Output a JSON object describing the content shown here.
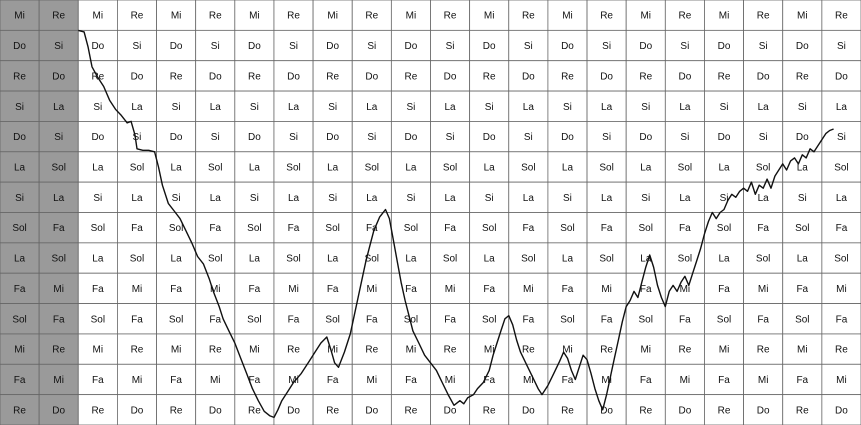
{
  "grid": {
    "rows": [
      [
        "Mi",
        "Re",
        "Mi",
        "Re",
        "Mi",
        "Re",
        "Mi",
        "Re",
        "Mi",
        "Re",
        "Mi",
        "Re",
        "Mi",
        "Re",
        "Mi",
        "Re",
        "Mi",
        "Re",
        "Mi",
        "Re",
        "Mi",
        "Re"
      ],
      [
        "Do",
        "Si",
        "Do",
        "Si",
        "Do",
        "Si",
        "Do",
        "Si",
        "Do",
        "Si",
        "Do",
        "Si",
        "Do",
        "Si",
        "Do",
        "Si",
        "Do",
        "Si",
        "Do",
        "Si",
        "Do",
        "Si"
      ],
      [
        "Re",
        "Do",
        "Re",
        "Do",
        "Re",
        "Do",
        "Re",
        "Do",
        "Re",
        "Do",
        "Re",
        "Do",
        "Re",
        "Do",
        "Re",
        "Do",
        "Re",
        "Do",
        "Re",
        "Do",
        "Re",
        "Do"
      ],
      [
        "Si",
        "La",
        "Si",
        "La",
        "Si",
        "La",
        "Si",
        "La",
        "Si",
        "La",
        "Si",
        "La",
        "Si",
        "La",
        "Si",
        "La",
        "Si",
        "La",
        "Si",
        "La",
        "Si",
        "La"
      ],
      [
        "Do",
        "Si",
        "Do",
        "Si",
        "Do",
        "Si",
        "Do",
        "Si",
        "Do",
        "Si",
        "Do",
        "Si",
        "Do",
        "Si",
        "Do",
        "Si",
        "Do",
        "Si",
        "Do",
        "Si",
        "Do",
        "Si"
      ],
      [
        "La",
        "Sol",
        "La",
        "Sol",
        "La",
        "Sol",
        "La",
        "Sol",
        "La",
        "Sol",
        "La",
        "Sol",
        "La",
        "Sol",
        "La",
        "Sol",
        "La",
        "Sol",
        "La",
        "Sol",
        "La",
        "Sol"
      ],
      [
        "Si",
        "La",
        "Si",
        "La",
        "Si",
        "La",
        "Si",
        "La",
        "Si",
        "La",
        "Si",
        "La",
        "Si",
        "La",
        "Si",
        "La",
        "Si",
        "La",
        "Si",
        "La",
        "Si",
        "La"
      ],
      [
        "Sol",
        "Fa",
        "Sol",
        "Fa",
        "Sol",
        "Fa",
        "Sol",
        "Fa",
        "Sol",
        "Fa",
        "Sol",
        "Fa",
        "Sol",
        "Fa",
        "Sol",
        "Fa",
        "Sol",
        "Fa",
        "Sol",
        "Fa",
        "Sol",
        "Fa"
      ],
      [
        "La",
        "Sol",
        "La",
        "Sol",
        "La",
        "Sol",
        "La",
        "Sol",
        "La",
        "Sol",
        "La",
        "Sol",
        "La",
        "Sol",
        "La",
        "Sol",
        "La",
        "Sol",
        "La",
        "Sol",
        "La",
        "Sol"
      ],
      [
        "Fa",
        "Mi",
        "Fa",
        "Mi",
        "Fa",
        "Mi",
        "Fa",
        "Mi",
        "Fa",
        "Mi",
        "Fa",
        "Mi",
        "Fa",
        "Mi",
        "Fa",
        "Mi",
        "Fa",
        "Mi",
        "Fa",
        "Mi",
        "Fa",
        "Mi"
      ],
      [
        "Sol",
        "Fa",
        "Sol",
        "Fa",
        "Sol",
        "Fa",
        "Sol",
        "Fa",
        "Sol",
        "Fa",
        "Sol",
        "Fa",
        "Sol",
        "Fa",
        "Sol",
        "Fa",
        "Sol",
        "Fa",
        "Sol",
        "Fa",
        "Sol",
        "Fa"
      ],
      [
        "Mi",
        "Re",
        "Mi",
        "Re",
        "Mi",
        "Re",
        "Mi",
        "Re",
        "Mi",
        "Re",
        "Mi",
        "Re",
        "Mi",
        "Re",
        "Mi",
        "Re",
        "Mi",
        "Re",
        "Mi",
        "Re",
        "Mi",
        "Re"
      ],
      [
        "Fa",
        "Mi",
        "Fa",
        "Mi",
        "Fa",
        "Mi",
        "Fa",
        "Mi",
        "Fa",
        "Mi",
        "Fa",
        "Mi",
        "Fa",
        "Mi",
        "Fa",
        "Mi",
        "Fa",
        "Mi",
        "Fa",
        "Mi",
        "Fa",
        "Mi"
      ],
      [
        "Re",
        "Do",
        "Re",
        "Do",
        "Re",
        "Do",
        "Re",
        "Do",
        "Re",
        "Do",
        "Re",
        "Do",
        "Re",
        "Do",
        "Re",
        "Do",
        "Re",
        "Do",
        "Re",
        "Do",
        "Re",
        "Do"
      ]
    ],
    "label_columns": 2,
    "colors": {
      "label_fill": "#9a9a9a",
      "cell_fill": "#ffffff",
      "border": "#666666",
      "trace": "#111111"
    }
  },
  "pitch_trace": {
    "description_units": "grid cells (column, row from top)",
    "points": [
      [
        2.0,
        1.0
      ],
      [
        2.15,
        1.05
      ],
      [
        2.25,
        1.55
      ],
      [
        2.35,
        2.2
      ],
      [
        2.5,
        2.55
      ],
      [
        2.65,
        2.85
      ],
      [
        2.8,
        3.3
      ],
      [
        2.95,
        3.6
      ],
      [
        3.1,
        3.8
      ],
      [
        3.25,
        4.05
      ],
      [
        3.35,
        4.0
      ],
      [
        3.45,
        4.45
      ],
      [
        3.5,
        4.9
      ],
      [
        3.65,
        4.95
      ],
      [
        3.8,
        4.95
      ],
      [
        3.95,
        5.0
      ],
      [
        4.05,
        5.5
      ],
      [
        4.15,
        6.1
      ],
      [
        4.3,
        6.7
      ],
      [
        4.45,
        6.95
      ],
      [
        4.6,
        7.2
      ],
      [
        4.75,
        7.6
      ],
      [
        4.9,
        8.0
      ],
      [
        5.05,
        8.45
      ],
      [
        5.2,
        8.7
      ],
      [
        5.35,
        9.2
      ],
      [
        5.45,
        9.6
      ],
      [
        5.6,
        10.1
      ],
      [
        5.7,
        10.5
      ],
      [
        5.85,
        10.9
      ],
      [
        6.0,
        11.3
      ],
      [
        6.15,
        11.8
      ],
      [
        6.3,
        12.3
      ],
      [
        6.45,
        12.8
      ],
      [
        6.6,
        13.2
      ],
      [
        6.75,
        13.55
      ],
      [
        6.9,
        13.7
      ],
      [
        7.0,
        13.75
      ],
      [
        7.1,
        13.5
      ],
      [
        7.2,
        13.2
      ],
      [
        7.35,
        12.9
      ],
      [
        7.5,
        12.6
      ],
      [
        7.7,
        12.3
      ],
      [
        7.9,
        11.9
      ],
      [
        8.05,
        11.6
      ],
      [
        8.2,
        11.3
      ],
      [
        8.35,
        11.1
      ],
      [
        8.45,
        11.5
      ],
      [
        8.55,
        11.95
      ],
      [
        8.65,
        12.1
      ],
      [
        8.8,
        11.6
      ],
      [
        8.95,
        11.0
      ],
      [
        9.05,
        10.4
      ],
      [
        9.15,
        9.8
      ],
      [
        9.25,
        9.2
      ],
      [
        9.35,
        8.6
      ],
      [
        9.45,
        8.1
      ],
      [
        9.55,
        7.6
      ],
      [
        9.7,
        7.15
      ],
      [
        9.85,
        6.9
      ],
      [
        9.95,
        7.2
      ],
      [
        10.05,
        7.9
      ],
      [
        10.15,
        8.6
      ],
      [
        10.25,
        9.3
      ],
      [
        10.35,
        9.9
      ],
      [
        10.45,
        10.4
      ],
      [
        10.55,
        10.9
      ],
      [
        10.7,
        11.3
      ],
      [
        10.85,
        11.7
      ],
      [
        11.0,
        11.95
      ],
      [
        11.15,
        12.2
      ],
      [
        11.3,
        12.6
      ],
      [
        11.45,
        13.0
      ],
      [
        11.6,
        13.35
      ],
      [
        11.75,
        13.2
      ],
      [
        11.85,
        13.3
      ],
      [
        11.95,
        13.1
      ],
      [
        12.1,
        13.0
      ],
      [
        12.2,
        12.8
      ],
      [
        12.35,
        12.6
      ],
      [
        12.5,
        12.2
      ],
      [
        12.6,
        11.7
      ],
      [
        12.7,
        11.3
      ],
      [
        12.8,
        10.9
      ],
      [
        12.9,
        10.5
      ],
      [
        13.0,
        10.4
      ],
      [
        13.1,
        10.7
      ],
      [
        13.2,
        11.2
      ],
      [
        13.3,
        11.6
      ],
      [
        13.45,
        12.0
      ],
      [
        13.6,
        12.4
      ],
      [
        13.75,
        12.8
      ],
      [
        13.85,
        13.0
      ],
      [
        14.0,
        12.7
      ],
      [
        14.15,
        12.3
      ],
      [
        14.3,
        11.9
      ],
      [
        14.4,
        11.6
      ],
      [
        14.5,
        11.8
      ],
      [
        14.6,
        12.2
      ],
      [
        14.7,
        12.5
      ],
      [
        14.8,
        12.1
      ],
      [
        14.9,
        11.7
      ],
      [
        15.0,
        11.85
      ],
      [
        15.1,
        12.3
      ],
      [
        15.2,
        12.8
      ],
      [
        15.3,
        13.2
      ],
      [
        15.4,
        13.5
      ],
      [
        15.5,
        13.0
      ],
      [
        15.6,
        12.4
      ],
      [
        15.7,
        11.8
      ],
      [
        15.8,
        11.2
      ],
      [
        15.9,
        10.6
      ],
      [
        16.0,
        10.1
      ],
      [
        16.1,
        9.9
      ],
      [
        16.2,
        9.6
      ],
      [
        16.3,
        9.8
      ],
      [
        16.4,
        9.3
      ],
      [
        16.5,
        8.8
      ],
      [
        16.6,
        8.4
      ],
      [
        16.7,
        8.8
      ],
      [
        16.8,
        9.4
      ],
      [
        16.9,
        9.8
      ],
      [
        17.0,
        10.1
      ],
      [
        17.1,
        9.6
      ],
      [
        17.2,
        9.4
      ],
      [
        17.3,
        9.6
      ],
      [
        17.4,
        9.3
      ],
      [
        17.5,
        9.1
      ],
      [
        17.6,
        9.4
      ],
      [
        17.7,
        9.0
      ],
      [
        17.8,
        8.6
      ],
      [
        17.9,
        8.2
      ],
      [
        18.0,
        7.7
      ],
      [
        18.1,
        7.3
      ],
      [
        18.2,
        7.0
      ],
      [
        18.3,
        7.2
      ],
      [
        18.4,
        7.0
      ],
      [
        18.5,
        6.9
      ],
      [
        18.6,
        6.6
      ],
      [
        18.7,
        6.4
      ],
      [
        18.8,
        6.5
      ],
      [
        18.9,
        6.3
      ],
      [
        19.0,
        6.2
      ],
      [
        19.1,
        6.3
      ],
      [
        19.2,
        6.0
      ],
      [
        19.3,
        6.4
      ],
      [
        19.4,
        6.1
      ],
      [
        19.5,
        6.2
      ],
      [
        19.6,
        5.9
      ],
      [
        19.7,
        6.2
      ],
      [
        19.8,
        5.8
      ],
      [
        19.9,
        5.6
      ],
      [
        20.0,
        5.4
      ],
      [
        20.1,
        5.6
      ],
      [
        20.2,
        5.3
      ],
      [
        20.3,
        5.2
      ],
      [
        20.4,
        5.4
      ],
      [
        20.5,
        5.1
      ],
      [
        20.6,
        5.2
      ],
      [
        20.7,
        4.9
      ],
      [
        20.8,
        5.0
      ],
      [
        20.9,
        4.8
      ],
      [
        21.0,
        4.6
      ],
      [
        21.1,
        4.4
      ],
      [
        21.2,
        4.3
      ],
      [
        21.3,
        4.25
      ]
    ]
  }
}
